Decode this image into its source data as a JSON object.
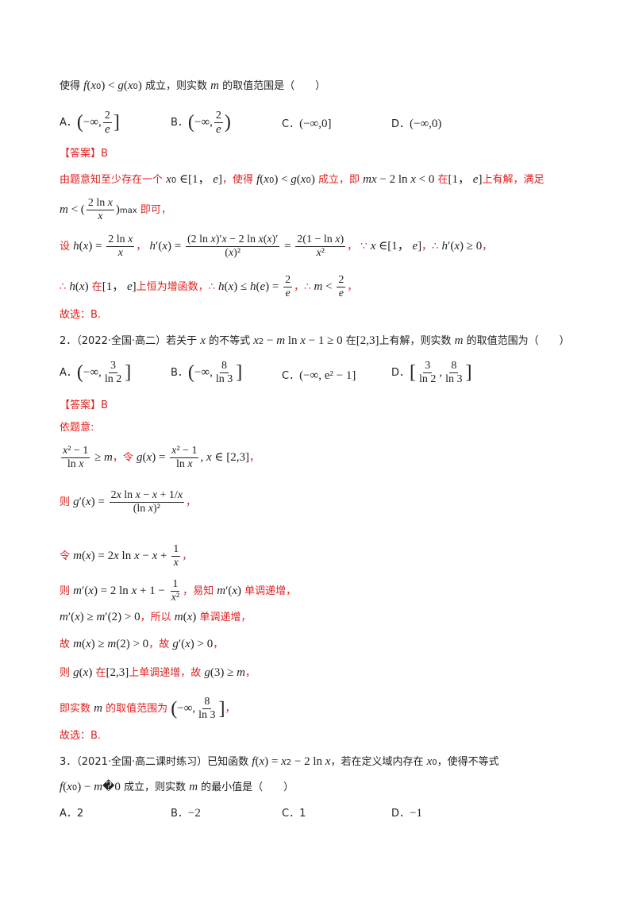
{
  "q1": {
    "stem_tail": "使得 f(x₀) < g(x₀) 成立，则实数 m 的取值范围是（　　）",
    "options": [
      {
        "label": "A．",
        "text": "(−∞, 2/e]"
      },
      {
        "label": "B．",
        "text": "(−∞, 2/e)"
      },
      {
        "label": "C．",
        "text": "(−∞,0]"
      },
      {
        "label": "D．",
        "text": "(−∞,0)"
      }
    ],
    "answer": "【答案】B",
    "sol": [
      "由题意知至少存在一个 x₀ ∈[1， e]，使得 f(x₀) < g(x₀) 成立，即 mx − 2 ln x < 0 在[1， e]上有解，满足",
      "m < (2ln x / x)max 即可，",
      "设 h(x) = 2ln x / x ，h′(x) = ((2ln x)′x − 2ln x(x)′)/(x)² = 2(1 − ln x)/x² ，∵ x ∈[1， e]，∴ h′(x) ≥ 0，",
      "∴ h(x) 在[1， e]上恒为增函数，∴ h(x) ≤ h(e) = 2/e ，∴ m < 2/e ，",
      "故选：B."
    ]
  },
  "q2": {
    "stem": "2．（2022·全国·高二）若关于 x 的不等式 x² − m ln x − 1 ≥ 0 在[2,3]上有解，则实数 m 的取值范围为（　　）",
    "options": [
      {
        "label": "A．",
        "text": "(−∞, 3/ln2]"
      },
      {
        "label": "B．",
        "text": "(−∞, 8/ln3]"
      },
      {
        "label": "C．",
        "text": "(−∞, e²−1]"
      },
      {
        "label": "D．",
        "text": "[3/ln2, 8/ln3]"
      }
    ],
    "answer": "【答案】B",
    "sol": [
      "依题意:",
      "(x² − 1)/ln x ≥ m，令 g(x) = (x² − 1)/ln x, x ∈ [2,3]，",
      "则 g′(x) = (2x ln x − x + 1/x)/(ln x)²，",
      "令 m(x) = 2x ln x − x + 1/x，",
      "则 m′(x) = 2ln x + 1 − 1/x²，易知 m′(x) 单调递增，",
      "m′(x) ≥ m′(2) > 0，所以 m(x) 单调递增，",
      "故 m(x) ≥ m(2) > 0，故 g′(x) > 0，",
      "则 g(x) 在[2,3]上单调递增，故 g(3) ≥ m，",
      "即实数 m 的取值范围为 (−∞, 8/ln3]，",
      "故选：B."
    ]
  },
  "q3": {
    "stem": "3．（2021·全国·高二课时练习）已知函数 f(x) = x² − 2ln x，若在定义域内存在 x₀，使得不等式",
    "stem2": "f(x₀) − m�0 成立，则实数 m 的最小值是（　　）",
    "options": [
      {
        "label": "A．",
        "text": "2"
      },
      {
        "label": "B．",
        "text": "−2"
      },
      {
        "label": "C．",
        "text": "1"
      },
      {
        "label": "D．",
        "text": "−1"
      }
    ]
  }
}
